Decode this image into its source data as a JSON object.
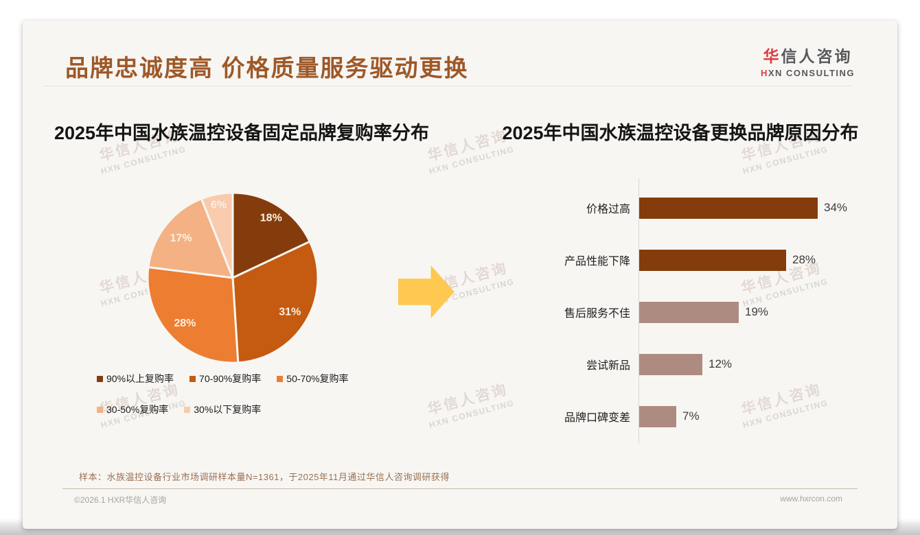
{
  "colors": {
    "title_brown": "#9e5827",
    "accent_red": "#de3b3e",
    "arrow_yellow": "#ffc851",
    "card_background": "#f7f6f3",
    "axis_gray": "#d8d8d8",
    "footer_divider_tan": "#c9bbab",
    "footnote_brown": "#9b7053",
    "footer_gray": "#a7a39f"
  },
  "page": {
    "title": "品牌忠诚度高 价格质量服务驱动更换",
    "logo": {
      "brand_accent": "华",
      "brand_rest": "信人咨询",
      "sub_accent": "H",
      "sub_rest": "XN CONSULTING"
    },
    "watermark": {
      "line1": "华信人咨询",
      "line2": "HXN CONSULTING"
    },
    "footnote": "样本：水族温控设备行业市场调研样本量N=1361，于2025年11月通过华信人咨询调研获得",
    "footer": {
      "copyright": "©2026.1 HXR华信人咨询",
      "website": "www.hxrcon.com"
    }
  },
  "chart_data": [
    {
      "type": "pie",
      "title": "2025年中国水族温控设备固定品牌复购率分布",
      "categories": [
        "90%以上复购率",
        "70-90%复购率",
        "50-70%复购率",
        "30-50%复购率",
        "30%以下复购率"
      ],
      "values": [
        18,
        31,
        28,
        17,
        6
      ],
      "labels": [
        "18%",
        "31%",
        "28%",
        "17%",
        "6%"
      ],
      "colors": [
        "#843c0c",
        "#c55a11",
        "#ed7d31",
        "#f4b183",
        "#f8cbad"
      ],
      "start_angle_deg": 0,
      "direction": "clockwise",
      "legend_position": "bottom"
    },
    {
      "type": "bar",
      "orientation": "horizontal",
      "title": "2025年中国水族温控设备更换品牌原因分布",
      "categories": [
        "价格过高",
        "产品性能下降",
        "售后服务不佳",
        "尝试新品",
        "品牌口碑变差"
      ],
      "values": [
        34,
        28,
        19,
        12,
        7
      ],
      "value_labels": [
        "34%",
        "28%",
        "19%",
        "12%",
        "7%"
      ],
      "colors": [
        "#843c0c",
        "#843c0c",
        "#ae8b80",
        "#ae8b80",
        "#ae8b80"
      ],
      "xlim": [
        0,
        36
      ],
      "grid": false,
      "axis_line": "left"
    }
  ]
}
